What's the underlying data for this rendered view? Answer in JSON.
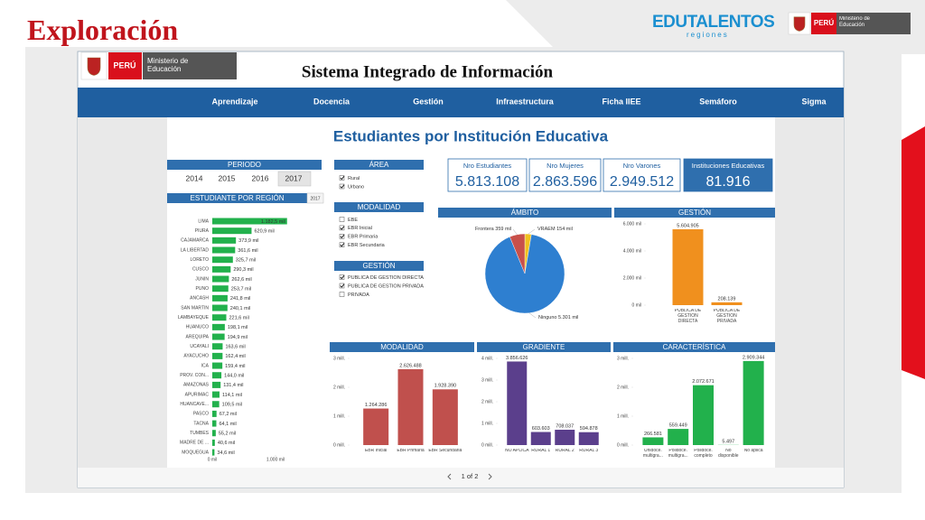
{
  "slide": {
    "title": "Exploración",
    "brand": "EDUTALENTOS",
    "brand_sub": "regiones",
    "country": "PERÚ",
    "ministry": "Ministerio de Educación"
  },
  "dashboard": {
    "country": "PERÚ",
    "ministry": "Ministerio de Educación",
    "title": "Sistema Integrado de Información",
    "nav": [
      "Aprendizaje",
      "Docencia",
      "Gestión",
      "Infraestructura",
      "Ficha IIEE",
      "Semáforo",
      "Sigma"
    ],
    "page_title": "Estudiantes por Institución Educativa",
    "pager": "1 of 2"
  },
  "filters": {
    "periodo": {
      "title": "PERIODO",
      "years": [
        "2014",
        "2015",
        "2016",
        "2017"
      ],
      "selected": "2017"
    },
    "area": {
      "title": "ÁREA",
      "items": [
        {
          "label": "Rural",
          "checked": true
        },
        {
          "label": "Urbano",
          "checked": true
        }
      ]
    },
    "modalidad": {
      "title": "MODALIDAD",
      "items": [
        {
          "label": "EBE",
          "checked": false
        },
        {
          "label": "EBR Inicial",
          "checked": true
        },
        {
          "label": "EBR Primaria",
          "checked": true
        },
        {
          "label": "EBR Secundaria",
          "checked": true
        }
      ]
    },
    "gestion": {
      "title": "GESTIÓN",
      "items": [
        {
          "label": "PUBLICA DE GESTION DIRECTA",
          "checked": true
        },
        {
          "label": "PUBLICA DE GESTION PRIVADA",
          "checked": true
        },
        {
          "label": "PRIVADA",
          "checked": false
        }
      ]
    }
  },
  "cards": [
    {
      "label": "Nro Estudiantes",
      "value": "5.813.108"
    },
    {
      "label": "Nro Mujeres",
      "value": "2.863.596"
    },
    {
      "label": "Nro Varones",
      "value": "2.949.512"
    },
    {
      "label": "Instituciones Educativas",
      "value": "81.916"
    }
  ],
  "chart_data": [
    {
      "type": "bar",
      "orientation": "horizontal",
      "title": "ESTUDIANTE POR REGIÓN",
      "subtitle": "2017",
      "color": "#22b14c",
      "categories": [
        "LIMA",
        "PIURA",
        "CAJAMARCA",
        "LA LIBERTAD",
        "LORETO",
        "CUSCO",
        "JUNIN",
        "PUNO",
        "ANCASH",
        "SAN MARTIN",
        "LAMBAYEQUE",
        "HUANUCO",
        "AREQUIPA",
        "UCAYALI",
        "AYACUCHO",
        "ICA",
        "PROV. CON...",
        "AMAZONAS",
        "APURIMAC",
        "HUANCAVE...",
        "PASCO",
        "TACNA",
        "TUMBES",
        "MADRE DE ...",
        "MOQUEGUA"
      ],
      "values": [
        1182.5,
        620.9,
        373.9,
        361.6,
        325.7,
        290.3,
        262.6,
        253.7,
        241.8,
        240.1,
        221.6,
        198.1,
        194.9,
        163.6,
        162.4,
        159.4,
        144.0,
        131.4,
        114.1,
        109.5,
        67.2,
        64.1,
        55.2,
        40.6,
        34.6
      ],
      "value_labels": [
        "1.182,5 mil",
        "620,9 mil",
        "373,9 mil",
        "361,6 mil",
        "325,7 mil",
        "290,3 mil",
        "262,6 mil",
        "253,7 mil",
        "241,8 mil",
        "240,1 mil",
        "221,6 mil",
        "198,1 mil",
        "194,9 mil",
        "163,6 mil",
        "162,4 mil",
        "159,4 mil",
        "144,0 mil",
        "131,4 mil",
        "114,1 mil",
        "109,5 mil",
        "67,2 mil",
        "64,1 mil",
        "55,2 mil",
        "40,6 mil",
        "34,6 mil"
      ],
      "xlim": [
        0,
        1200
      ],
      "xticks": [
        {
          "value": 0,
          "label": "0 mil"
        },
        {
          "value": 1000,
          "label": "1.000 mil"
        }
      ]
    },
    {
      "type": "pie",
      "title": "ÁMBITO",
      "categories": [
        "VRAEM",
        "Ninguno",
        "Frontera"
      ],
      "values": [
        154,
        5301,
        359
      ],
      "value_labels": [
        "154 mil",
        "5.301 mil",
        "359 mil"
      ],
      "colors": [
        "#f0c020",
        "#2e7fd0",
        "#c8504a"
      ]
    },
    {
      "type": "bar",
      "title": "GESTIÓN",
      "color": "#f0901e",
      "categories": [
        "PUBLICA DE GESTION DIRECTA",
        "PUBLICA DE GESTION PRIVADA"
      ],
      "values": [
        5604.905,
        208.139
      ],
      "value_labels": [
        "5.604.905",
        "208.139"
      ],
      "ylim": [
        0,
        6000
      ],
      "yticks": [
        {
          "value": 0,
          "label": "0 mil"
        },
        {
          "value": 2000,
          "label": "2.000 mil"
        },
        {
          "value": 4000,
          "label": "4.000 mil"
        },
        {
          "value": 6000,
          "label": "6.000 mil"
        }
      ]
    },
    {
      "type": "bar",
      "title": "MODALIDAD",
      "color": "#c0504d",
      "categories": [
        "EBR Inicial",
        "EBR Primaria",
        "EBR Secundaria"
      ],
      "values": [
        1.264286,
        2.626488,
        1.92839
      ],
      "value_labels": [
        "1.264.286",
        "2.626.488",
        "1.928.390"
      ],
      "ylim": [
        0,
        3
      ],
      "yticks": [
        {
          "value": 0,
          "label": "0 mill."
        },
        {
          "value": 1,
          "label": "1 mill."
        },
        {
          "value": 2,
          "label": "2 mill."
        },
        {
          "value": 3,
          "label": "3 mill."
        }
      ]
    },
    {
      "type": "bar",
      "title": "GRADIENTE",
      "color": "#5b3f8c",
      "categories": [
        "NO APLICA",
        "RURAL 1",
        "RURAL 2",
        "RURAL 3"
      ],
      "values": [
        3.856626,
        0.603603,
        0.708037,
        0.594878
      ],
      "value_labels": [
        "3.856.626",
        "603.603",
        "708.037",
        "594.878"
      ],
      "ylim": [
        0,
        4
      ],
      "yticks": [
        {
          "value": 0,
          "label": "0 mill."
        },
        {
          "value": 1,
          "label": "1 mill."
        },
        {
          "value": 2,
          "label": "2 mill."
        },
        {
          "value": 3,
          "label": "3 mill."
        },
        {
          "value": 4,
          "label": "4 mill."
        }
      ]
    },
    {
      "type": "bar",
      "title": "CARACTERÍSTICA",
      "color": "#22b14c",
      "categories": [
        "Unidoce. multigra...",
        "Polidoce. multigra...",
        "Polidoce. completo",
        "No disponible",
        "No aplica"
      ],
      "values": [
        0.266581,
        0.559449,
        2.072671,
        0.005497,
        2.909344
      ],
      "value_labels": [
        "266.581",
        "559.449",
        "2.072.671",
        "5.497",
        "2.909.344"
      ],
      "ylim": [
        0,
        3
      ],
      "yticks": [
        {
          "value": 0,
          "label": "0 mill."
        },
        {
          "value": 1,
          "label": "1 mill."
        },
        {
          "value": 2,
          "label": "2 mill."
        },
        {
          "value": 3,
          "label": "3 mill."
        }
      ]
    }
  ]
}
